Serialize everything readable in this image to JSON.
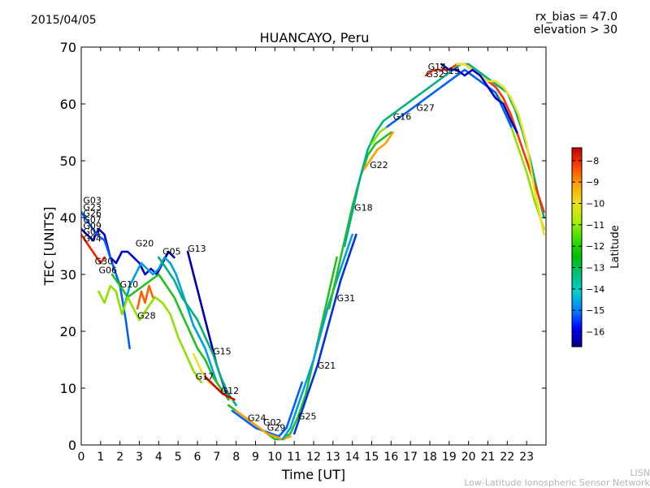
{
  "header": {
    "date": "2015/04/05",
    "title": "HUANCAYO, Peru",
    "note_bias": "rx_bias = 47.0",
    "note_elevation": "elevation > 30"
  },
  "footer": {
    "credit_short": "LISN",
    "credit_long": "Low-Latitude Ionospheric Sensor Network"
  },
  "chart_data": {
    "type": "scatter",
    "title": "HUANCAYO, Peru",
    "xlabel": "Time [UT]",
    "ylabel": "TEC [UNITS]",
    "xlim": [
      0,
      24
    ],
    "ylim": [
      0,
      70
    ],
    "xticks": [
      0,
      1,
      2,
      3,
      4,
      5,
      6,
      7,
      8,
      9,
      10,
      11,
      12,
      13,
      14,
      15,
      16,
      17,
      18,
      19,
      20,
      21,
      22,
      23
    ],
    "yticks": [
      0,
      10,
      20,
      30,
      40,
      50,
      60,
      70
    ],
    "colorbar": {
      "label": "Latitude",
      "range": [
        -16.7,
        -7.4
      ],
      "ticks": [
        -8,
        -9,
        -10,
        -11,
        -12,
        -13,
        -14,
        -15,
        -16
      ],
      "colors": [
        "#00007f",
        "#0000ff",
        "#007fff",
        "#00cfcf",
        "#00bf7f",
        "#00c000",
        "#40e000",
        "#b0ef00",
        "#f0e020",
        "#ffa000",
        "#ff4000",
        "#bf0000"
      ]
    },
    "satellite_labels": [
      {
        "name": "G03",
        "x": 0.1,
        "y": 42.5
      },
      {
        "name": "G23",
        "x": 0.1,
        "y": 41.3
      },
      {
        "name": "G26",
        "x": 0.1,
        "y": 40.2
      },
      {
        "name": "G07",
        "x": 0.1,
        "y": 39.1
      },
      {
        "name": "G09",
        "x": 0.1,
        "y": 38.0
      },
      {
        "name": "G01",
        "x": 0.1,
        "y": 37.0
      },
      {
        "name": "G04",
        "x": 0.1,
        "y": 35.8
      },
      {
        "name": "G30",
        "x": 0.7,
        "y": 31.8
      },
      {
        "name": "G06",
        "x": 0.9,
        "y": 30.2
      },
      {
        "name": "G10",
        "x": 2.0,
        "y": 27.7
      },
      {
        "name": "G20",
        "x": 2.8,
        "y": 34.9
      },
      {
        "name": "G28",
        "x": 2.9,
        "y": 22.2
      },
      {
        "name": "G05",
        "x": 4.2,
        "y": 33.5
      },
      {
        "name": "G13",
        "x": 5.5,
        "y": 34.0
      },
      {
        "name": "G15",
        "x": 6.8,
        "y": 15.9
      },
      {
        "name": "G17",
        "x": 5.9,
        "y": 11.5
      },
      {
        "name": "G12",
        "x": 7.2,
        "y": 9.0
      },
      {
        "name": "G24",
        "x": 8.6,
        "y": 4.2
      },
      {
        "name": "G02",
        "x": 9.4,
        "y": 3.4
      },
      {
        "name": "G29",
        "x": 9.6,
        "y": 2.5
      },
      {
        "name": "G25",
        "x": 11.2,
        "y": 4.5
      },
      {
        "name": "G21",
        "x": 12.2,
        "y": 13.4
      },
      {
        "name": "G31",
        "x": 13.2,
        "y": 25.3
      },
      {
        "name": "G18",
        "x": 14.1,
        "y": 41.2
      },
      {
        "name": "G22",
        "x": 14.9,
        "y": 48.7
      },
      {
        "name": "G16",
        "x": 16.1,
        "y": 57.2
      },
      {
        "name": "G27",
        "x": 17.3,
        "y": 58.8
      },
      {
        "name": "G14",
        "x": 17.9,
        "y": 66.0
      },
      {
        "name": "G32",
        "x": 17.8,
        "y": 64.7
      },
      {
        "name": "G19",
        "x": 18.6,
        "y": 65.3
      }
    ],
    "series": [
      {
        "color": "#0000cc",
        "x": [
          0.0,
          0.3,
          0.6,
          0.9,
          1.2,
          1.5,
          1.8,
          2.1,
          2.4,
          2.7,
          3.0,
          3.3,
          3.6,
          3.9,
          4.2,
          4.5,
          4.8
        ],
        "y": [
          38,
          37,
          36,
          38,
          37,
          33,
          32,
          34,
          34,
          33,
          32,
          30,
          31,
          30,
          32,
          34,
          33
        ]
      },
      {
        "color": "#0000aa",
        "x": [
          5.5,
          5.8,
          6.1,
          6.4,
          6.7,
          7.0,
          7.3,
          7.6
        ],
        "y": [
          34,
          30,
          26,
          22,
          18,
          14,
          11,
          8
        ]
      },
      {
        "color": "#0060ff",
        "x": [
          0.0,
          0.4,
          0.8,
          1.2,
          1.6,
          2.0,
          2.3,
          2.5
        ],
        "y": [
          41,
          39,
          37,
          36,
          32,
          28,
          22,
          17
        ]
      },
      {
        "color": "#00a0e0",
        "x": [
          2.2,
          2.5,
          2.8,
          3.1,
          3.4,
          3.7,
          4.0,
          4.3,
          4.6,
          4.9,
          5.2,
          5.5,
          5.8,
          6.1,
          6.4,
          6.7,
          7.0
        ],
        "y": [
          24,
          28,
          30,
          32,
          31,
          30,
          31,
          33,
          32,
          30,
          27,
          24,
          21,
          19,
          17,
          14,
          11
        ]
      },
      {
        "color": "#00b080",
        "x": [
          4.0,
          4.4,
          4.8,
          5.2,
          5.6,
          6.0,
          6.4,
          6.8,
          7.2,
          7.6,
          8.0
        ],
        "y": [
          33,
          31,
          29,
          26,
          24,
          22,
          19,
          16,
          12,
          9,
          7
        ]
      },
      {
        "color": "#20c020",
        "x": [
          1.6,
          2.0,
          2.4,
          2.8,
          3.2,
          3.6,
          4.0,
          4.4,
          4.8,
          5.2,
          5.6,
          6.0,
          6.4,
          6.8,
          7.2,
          7.6
        ],
        "y": [
          30,
          28,
          26,
          27,
          28,
          29,
          30,
          28,
          26,
          23,
          20,
          17,
          15,
          12,
          10,
          8
        ]
      },
      {
        "color": "#90e000",
        "x": [
          0.9,
          1.2,
          1.5,
          1.8,
          2.1,
          2.4,
          2.7,
          3.0,
          3.4,
          3.8,
          4.2,
          4.6,
          5.0,
          5.4,
          5.8,
          6.2
        ],
        "y": [
          27,
          25,
          28,
          27,
          23,
          26,
          24,
          22,
          24,
          26,
          25,
          23,
          19,
          16,
          13,
          11
        ]
      },
      {
        "color": "#f0e020",
        "x": [
          5.8,
          6.2,
          6.6,
          7.0,
          7.4,
          7.8
        ],
        "y": [
          16,
          13,
          11,
          10,
          9,
          8
        ]
      },
      {
        "color": "#ff6000",
        "x": [
          2.9,
          3.1,
          3.3,
          3.5,
          3.7
        ],
        "y": [
          24,
          27,
          25,
          28,
          26
        ]
      },
      {
        "color": "#ff2000",
        "x": [
          0.0,
          0.2,
          0.4,
          0.6,
          0.8,
          1.0,
          1.2
        ],
        "y": [
          37,
          36,
          35,
          34,
          33,
          32,
          33
        ]
      },
      {
        "color": "#cc0000",
        "x": [
          6.4,
          6.7,
          7.0,
          7.3,
          7.6,
          7.9
        ],
        "y": [
          12,
          11,
          10,
          9,
          8.5,
          8
        ]
      },
      {
        "color": "#0060ff",
        "x": [
          7.8,
          8.2,
          8.6,
          9.0,
          9.4,
          9.8,
          10.2,
          10.6,
          11.0,
          11.4
        ],
        "y": [
          6,
          5,
          4,
          3,
          2.5,
          2,
          1.5,
          3,
          7,
          11
        ]
      },
      {
        "color": "#20c020",
        "x": [
          7.6,
          8.0,
          8.4,
          8.8,
          9.2,
          9.6,
          10.0,
          10.4,
          10.8,
          11.2,
          11.6,
          12.0,
          12.4,
          12.8,
          13.2
        ],
        "y": [
          7,
          6,
          5,
          4,
          3,
          2,
          1,
          1,
          2,
          5,
          9,
          15,
          21,
          27,
          33
        ]
      },
      {
        "color": "#ffa000",
        "x": [
          8.0,
          8.4,
          8.8,
          9.2,
          9.6,
          10.0,
          10.4,
          10.8
        ],
        "y": [
          6,
          5,
          4,
          3,
          2,
          1.5,
          1,
          1.5
        ]
      },
      {
        "color": "#00a0e0",
        "x": [
          10.4,
          10.8,
          11.2,
          11.6,
          12.0,
          12.4,
          12.8,
          13.2,
          13.6,
          14.0
        ],
        "y": [
          1,
          3,
          7,
          11,
          15,
          20,
          25,
          29,
          33,
          37
        ]
      },
      {
        "color": "#0030e0",
        "x": [
          11.0,
          11.4,
          11.8,
          12.2,
          12.6,
          13.0,
          13.4,
          13.8,
          14.2
        ],
        "y": [
          2,
          6,
          10,
          14,
          19,
          24,
          29,
          33,
          37
        ]
      },
      {
        "color": "#20c020",
        "x": [
          12.8,
          13.2,
          13.6,
          14.0,
          14.4,
          14.8,
          15.2,
          15.6,
          16.0
        ],
        "y": [
          24,
          30,
          36,
          42,
          47,
          51,
          53,
          54,
          55
        ]
      },
      {
        "color": "#ffa000",
        "x": [
          14.5,
          14.9,
          15.3,
          15.7,
          16.1
        ],
        "y": [
          48,
          50,
          52,
          53,
          55
        ]
      },
      {
        "color": "#00b080",
        "x": [
          13.6,
          14.0,
          14.4,
          14.8,
          15.2,
          15.6,
          16.0,
          16.4,
          16.8,
          17.2,
          17.6,
          18.0,
          18.4,
          18.8,
          19.2,
          19.6,
          20.0,
          20.4,
          20.8,
          21.2,
          21.6,
          22.0,
          22.4,
          22.8,
          23.2,
          23.6,
          23.9
        ],
        "y": [
          35,
          41,
          47,
          52,
          55,
          57,
          58,
          59,
          60,
          61,
          62,
          63,
          64,
          65,
          66,
          67,
          67,
          66,
          65,
          64,
          63,
          62,
          59,
          55,
          50,
          44,
          40
        ]
      },
      {
        "color": "#90e000",
        "x": [
          15.0,
          15.4,
          15.8,
          16.2,
          16.6,
          17.0,
          17.4,
          17.8,
          18.2,
          18.6,
          19.0,
          19.4,
          19.8,
          20.2,
          20.6,
          21.0,
          21.4,
          21.8,
          22.2,
          22.6,
          23.0,
          23.4,
          23.9
        ],
        "y": [
          53,
          55,
          56,
          57,
          58,
          59,
          60,
          61,
          62,
          63,
          64,
          65,
          66,
          65,
          64,
          63,
          62,
          60,
          56,
          52,
          48,
          43,
          38
        ]
      },
      {
        "color": "#0060ff",
        "x": [
          15.8,
          16.2,
          16.6,
          17.0,
          17.4,
          17.8,
          18.2,
          18.6,
          19.0,
          19.4,
          19.8,
          20.2,
          20.6,
          21.0,
          21.4,
          21.8,
          22.2
        ],
        "y": [
          56,
          57,
          58,
          59,
          60,
          61,
          62,
          63,
          64,
          65,
          66,
          65,
          64,
          63,
          62,
          59,
          56
        ]
      },
      {
        "color": "#ff3000",
        "x": [
          17.8,
          18.2,
          18.6,
          19.0,
          19.4,
          19.8,
          20.2,
          20.6,
          21.0,
          21.4,
          21.8,
          22.2,
          22.6,
          23.0,
          23.4,
          23.9
        ],
        "y": [
          65,
          66,
          66,
          66,
          67,
          67,
          66,
          65,
          64,
          63,
          61,
          58,
          54,
          50,
          46,
          41
        ]
      },
      {
        "color": "#f0e020",
        "x": [
          19.4,
          19.8,
          20.2,
          20.6,
          21.0,
          21.4,
          21.8,
          22.2,
          22.6,
          23.0,
          23.4,
          23.9
        ],
        "y": [
          67,
          67,
          66,
          65,
          64,
          64,
          63,
          61,
          58,
          53,
          45,
          37
        ]
      },
      {
        "color": "#0000cc",
        "x": [
          18.6,
          19.0,
          19.4,
          19.8,
          20.2,
          20.6,
          21.0,
          21.4,
          21.8,
          22.2,
          22.5
        ],
        "y": [
          67,
          66,
          66,
          65,
          66,
          65,
          63,
          61,
          60,
          57,
          55
        ]
      }
    ]
  }
}
